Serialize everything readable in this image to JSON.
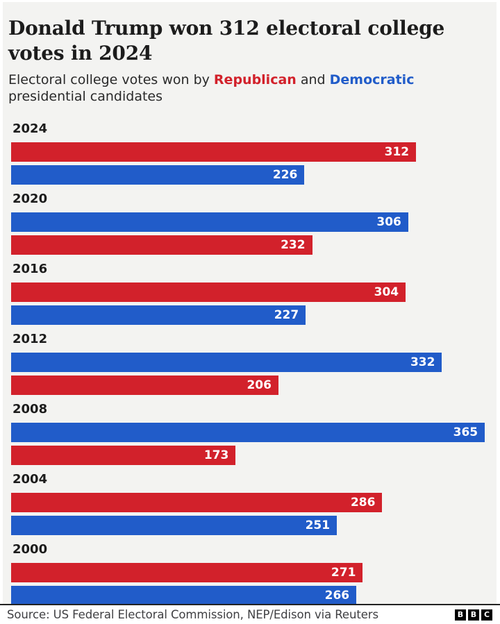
{
  "header": {
    "title": "Donald Trump won 312 electoral college votes in 2024",
    "subtitle_prefix": "Electoral college votes won by ",
    "subtitle_republican": "Republican",
    "subtitle_and": " and ",
    "subtitle_democratic": "Democratic",
    "subtitle_suffix": " presidential candidates"
  },
  "colors": {
    "republican": "#D2212B",
    "democratic": "#215CC9",
    "canvas_background": "#F3F3F1",
    "bar_value_text": "#FFFFFF",
    "heading_text": "#1C1C1C",
    "footer_text": "#3F3F42",
    "footer_divider": "#222222"
  },
  "chart_data": {
    "type": "bar",
    "orientation": "horizontal",
    "title": "Donald Trump won 312 electoral college votes in 2024",
    "subtitle": "Electoral college votes won by Republican and Democratic presidential candidates",
    "unit": "electoral college votes",
    "x_axis_max": 366,
    "grid": false,
    "legend_position": "inline-subtitle",
    "series_legend": [
      "Republican",
      "Democratic"
    ],
    "groups": [
      {
        "year": "2024",
        "bars": [
          {
            "party": "republican",
            "value": 312
          },
          {
            "party": "democratic",
            "value": 226
          }
        ]
      },
      {
        "year": "2020",
        "bars": [
          {
            "party": "democratic",
            "value": 306
          },
          {
            "party": "republican",
            "value": 232
          }
        ]
      },
      {
        "year": "2016",
        "bars": [
          {
            "party": "republican",
            "value": 304
          },
          {
            "party": "democratic",
            "value": 227
          }
        ]
      },
      {
        "year": "2012",
        "bars": [
          {
            "party": "democratic",
            "value": 332
          },
          {
            "party": "republican",
            "value": 206
          }
        ]
      },
      {
        "year": "2008",
        "bars": [
          {
            "party": "democratic",
            "value": 365
          },
          {
            "party": "republican",
            "value": 173
          }
        ]
      },
      {
        "year": "2004",
        "bars": [
          {
            "party": "republican",
            "value": 286
          },
          {
            "party": "democratic",
            "value": 251
          }
        ]
      },
      {
        "year": "2000",
        "bars": [
          {
            "party": "republican",
            "value": 271
          },
          {
            "party": "democratic",
            "value": 266
          }
        ]
      }
    ]
  },
  "footer": {
    "source": "Source: US Federal Electoral Commission, NEP/Edison via Reuters",
    "logo_letters": [
      "B",
      "B",
      "C"
    ]
  }
}
